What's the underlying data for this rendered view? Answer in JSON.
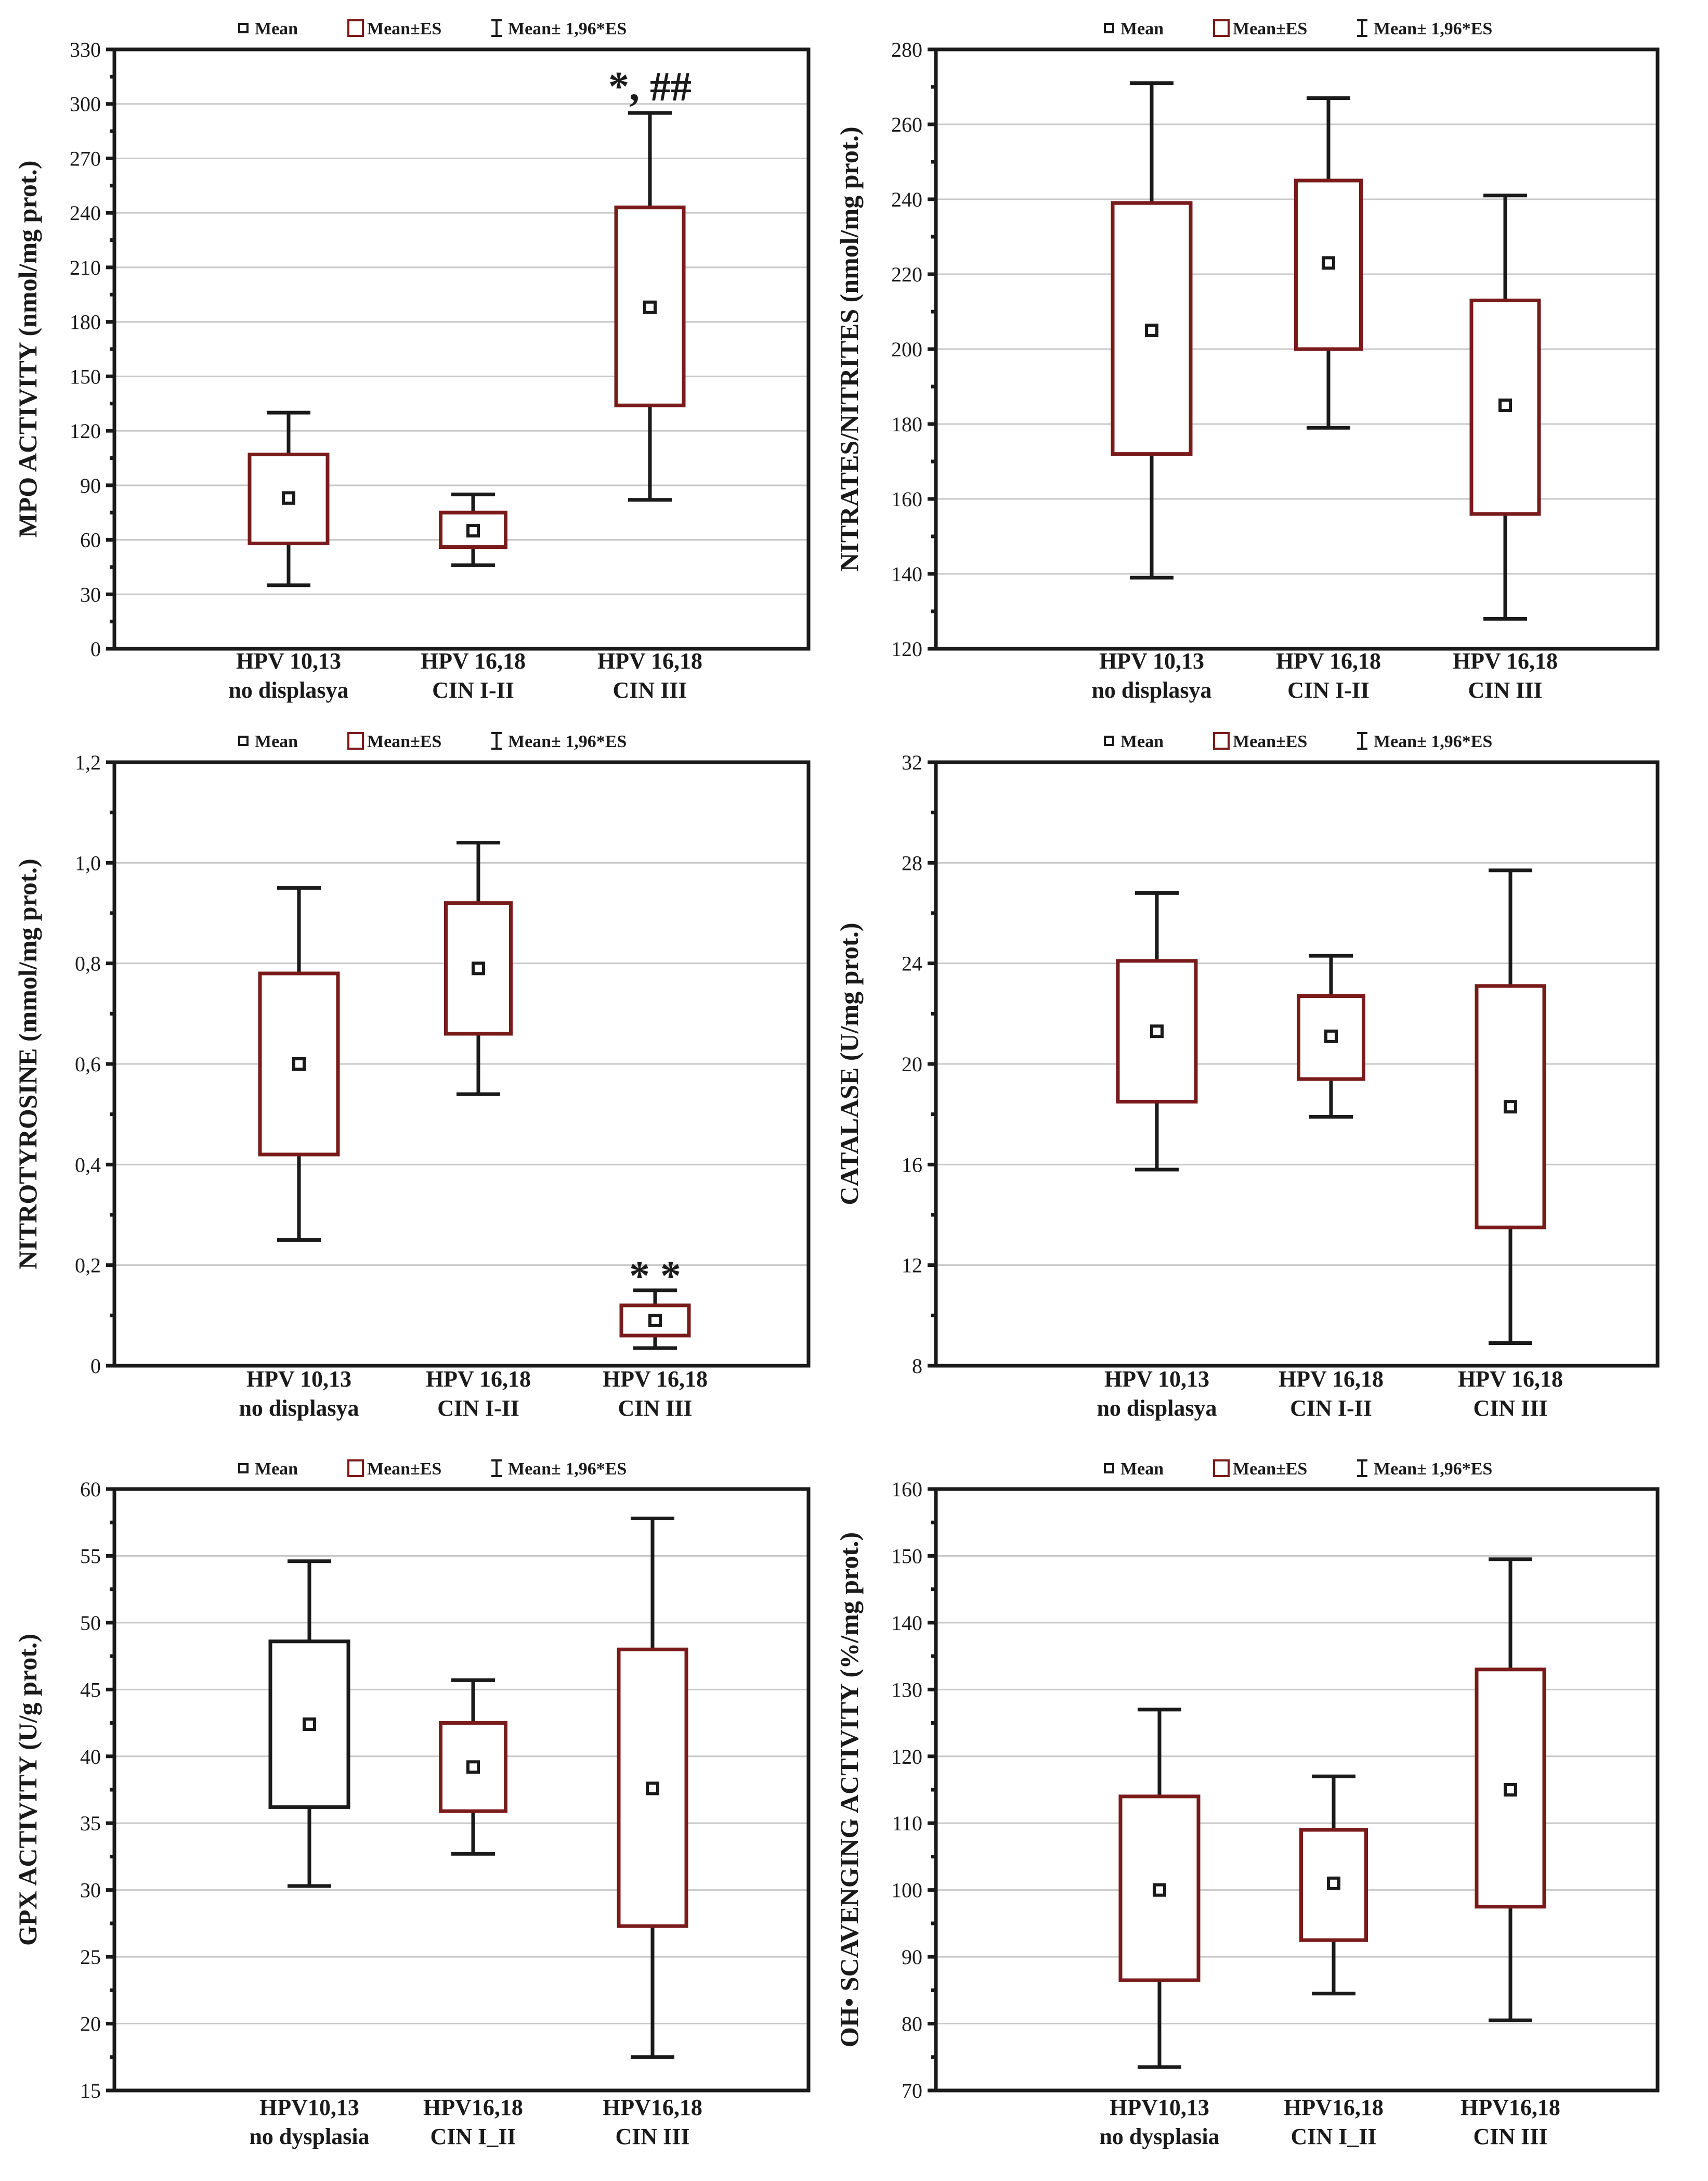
{
  "legend": {
    "mean": "Mean",
    "se": "Mean±ES",
    "ci": "Mean± 1,96*ES"
  },
  "colors": {
    "box_red": "#7a1b1b",
    "box_black": "#1a1a1a",
    "whisker": "#1a1a1a",
    "grid": "#c8c8c8"
  },
  "chart_data": [
    {
      "type": "box",
      "ylabel": "MPO ACTIVITY (nmol/mg prot.)",
      "ylim": [
        0,
        330
      ],
      "yticks": [
        "0",
        "30",
        "60",
        "90",
        "120",
        "150",
        "180",
        "210",
        "240",
        "270",
        "300",
        "330"
      ],
      "categories": [
        [
          "HPV 10,13",
          "no displasya"
        ],
        [
          "HPV 16,18",
          "CIN I-II"
        ],
        [
          "HPV 16,18",
          "CIN III"
        ]
      ],
      "series": [
        {
          "name": "HPV 10,13 no displasya",
          "mean": 83,
          "se_low": 58,
          "se_high": 107,
          "ci_low": 35,
          "ci_high": 130,
          "color": "red"
        },
        {
          "name": "HPV 16,18 CIN I-II",
          "mean": 65,
          "se_low": 56,
          "se_high": 75,
          "ci_low": 46,
          "ci_high": 85,
          "color": "red"
        },
        {
          "name": "HPV 16,18 CIN III",
          "mean": 188,
          "se_low": 134,
          "se_high": 243,
          "ci_low": 82,
          "ci_high": 295,
          "color": "red"
        }
      ],
      "annotations": [
        {
          "text": "*, ##",
          "category": 2,
          "y": 310
        }
      ]
    },
    {
      "type": "box",
      "ylabel": "NITRATES/NITRITES (nmol/mg prot.)",
      "ylim": [
        120,
        280
      ],
      "yticks": [
        "120",
        "140",
        "160",
        "180",
        "200",
        "220",
        "240",
        "260",
        "280"
      ],
      "categories": [
        [
          "HPV 10,13",
          "no displasya"
        ],
        [
          "HPV 16,18",
          "CIN I-II"
        ],
        [
          "HPV 16,18",
          "CIN III"
        ]
      ],
      "series": [
        {
          "name": "HPV 10,13 no displasya",
          "mean": 205,
          "se_low": 172,
          "se_high": 239,
          "ci_low": 139,
          "ci_high": 271,
          "color": "red"
        },
        {
          "name": "HPV 16,18 CIN I-II",
          "mean": 223,
          "se_low": 200,
          "se_high": 245,
          "ci_low": 179,
          "ci_high": 267,
          "color": "red"
        },
        {
          "name": "HPV 16,18 CIN III",
          "mean": 185,
          "se_low": 156,
          "se_high": 213,
          "ci_low": 128,
          "ci_high": 241,
          "color": "red"
        }
      ],
      "annotations": []
    },
    {
      "type": "box",
      "ylabel": "NITROTYROSINE (mmol/mg prot.)",
      "ylim": [
        0,
        1.2
      ],
      "yticks": [
        "0",
        "0,2",
        "0,4",
        "0,6",
        "0,8",
        "1,0",
        "1,2"
      ],
      "categories": [
        [
          "HPV 10,13",
          "no displasya"
        ],
        [
          "HPV 16,18",
          "CIN I-II"
        ],
        [
          "HPV 16,18",
          "CIN III"
        ]
      ],
      "series": [
        {
          "name": "HPV 10,13 no displasya",
          "mean": 0.6,
          "se_low": 0.42,
          "se_high": 0.78,
          "ci_low": 0.25,
          "ci_high": 0.95,
          "color": "red"
        },
        {
          "name": "HPV 16,18 CIN I-II",
          "mean": 0.79,
          "se_low": 0.66,
          "se_high": 0.92,
          "ci_low": 0.54,
          "ci_high": 1.04,
          "color": "red"
        },
        {
          "name": "HPV 16,18 CIN III",
          "mean": 0.09,
          "se_low": 0.06,
          "se_high": 0.12,
          "ci_low": 0.035,
          "ci_high": 0.15,
          "color": "red"
        }
      ],
      "annotations": [
        {
          "text": "* *",
          "category": 2,
          "y": 0.18
        }
      ]
    },
    {
      "type": "box",
      "ylabel": "CATALASE (U/mg prot.)",
      "ylim": [
        8,
        32
      ],
      "yticks": [
        "8",
        "12",
        "16",
        "20",
        "24",
        "28",
        "32"
      ],
      "categories": [
        [
          "HPV 10,13",
          "no displasya"
        ],
        [
          "HPV 16,18",
          "CIN I-II"
        ],
        [
          "HPV 16,18",
          "CIN III"
        ]
      ],
      "series": [
        {
          "name": "HPV 10,13 no displasya",
          "mean": 21.3,
          "se_low": 18.5,
          "se_high": 24.1,
          "ci_low": 15.8,
          "ci_high": 26.8,
          "color": "red"
        },
        {
          "name": "HPV 16,18 CIN I-II",
          "mean": 21.1,
          "se_low": 19.4,
          "se_high": 22.7,
          "ci_low": 17.9,
          "ci_high": 24.3,
          "color": "red"
        },
        {
          "name": "HPV 16,18 CIN III",
          "mean": 18.3,
          "se_low": 13.5,
          "se_high": 23.1,
          "ci_low": 8.9,
          "ci_high": 27.7,
          "color": "red"
        }
      ],
      "annotations": []
    },
    {
      "type": "box",
      "ylabel": "GPX ACTIVITY (U/g prot.)",
      "ylim": [
        15,
        60
      ],
      "yticks": [
        "15",
        "20",
        "25",
        "30",
        "35",
        "40",
        "45",
        "50",
        "55",
        "60"
      ],
      "categories": [
        [
          "HPV10,13",
          "no dysplasia"
        ],
        [
          "HPV16,18",
          "CIN I_II"
        ],
        [
          "HPV16,18",
          "CIN III"
        ]
      ],
      "series": [
        {
          "name": "HPV10,13 no dysplasia",
          "mean": 42.4,
          "se_low": 36.2,
          "se_high": 48.6,
          "ci_low": 30.3,
          "ci_high": 54.6,
          "color": "black"
        },
        {
          "name": "HPV16,18 CIN I_II",
          "mean": 39.2,
          "se_low": 35.9,
          "se_high": 42.5,
          "ci_low": 32.7,
          "ci_high": 45.7,
          "color": "red"
        },
        {
          "name": "HPV16,18 CIN III",
          "mean": 37.6,
          "se_low": 27.3,
          "se_high": 48.0,
          "ci_low": 17.5,
          "ci_high": 57.8,
          "color": "red"
        }
      ],
      "annotations": []
    },
    {
      "type": "box",
      "ylabel": "OH• SCAVENGING ACTIVITY (%/mg prot.)",
      "ylim": [
        70,
        160
      ],
      "yticks": [
        "70",
        "80",
        "90",
        "100",
        "110",
        "120",
        "130",
        "140",
        "150",
        "160"
      ],
      "categories": [
        [
          "HPV10,13",
          "no dysplasia"
        ],
        [
          "HPV16,18",
          "CIN I_II"
        ],
        [
          "HPV16,18",
          "CIN III"
        ]
      ],
      "series": [
        {
          "name": "HPV10,13 no dysplasia",
          "mean": 100,
          "se_low": 86.5,
          "se_high": 114,
          "ci_low": 73.5,
          "ci_high": 127,
          "color": "red"
        },
        {
          "name": "HPV16,18 CIN I_II",
          "mean": 101,
          "se_low": 92.5,
          "se_high": 109,
          "ci_low": 84.5,
          "ci_high": 117,
          "color": "red"
        },
        {
          "name": "HPV16,18 CIN III",
          "mean": 115,
          "se_low": 97.5,
          "se_high": 133,
          "ci_low": 80.5,
          "ci_high": 149.5,
          "color": "red"
        }
      ],
      "annotations": []
    }
  ]
}
